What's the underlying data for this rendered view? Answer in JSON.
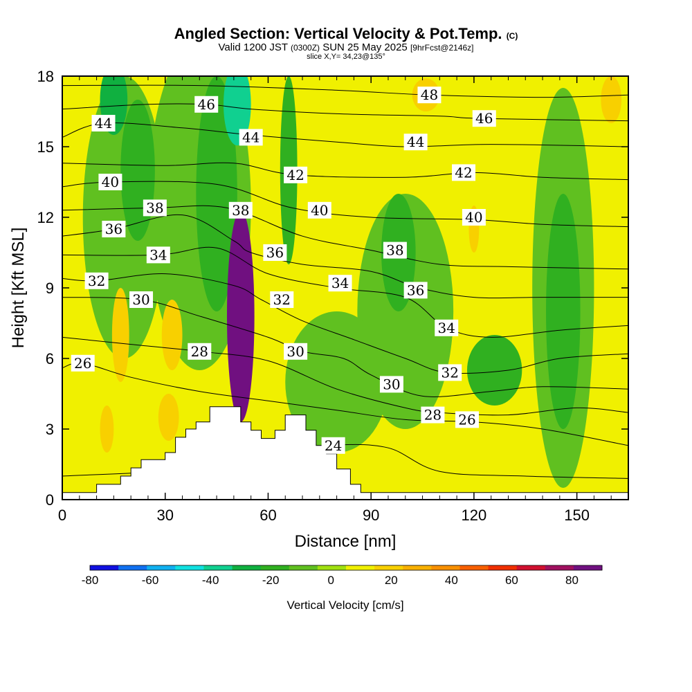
{
  "header": {
    "title": "Angled Section: Vertical Velocity & Pot.Temp.",
    "title_mark": "(C)",
    "valid_prefix": "Valid 1200 JST",
    "valid_zulu": "(0300Z)",
    "valid_date": "SUN 25 May 2025",
    "forecast_tag": "[9hrFcst@2146z]",
    "slice": "slice X,Y= 34,23@135°"
  },
  "chart_data": {
    "type": "heatmap",
    "xlabel": "Distance [nm]",
    "ylabel": "Height [Kft MSL]",
    "xlim": [
      0,
      165
    ],
    "ylim": [
      0,
      18
    ],
    "x_ticks": [
      {
        "value": 0,
        "label": "0"
      },
      {
        "value": 30,
        "label": "30"
      },
      {
        "value": 60,
        "label": "60"
      },
      {
        "value": 90,
        "label": "90"
      },
      {
        "value": 120,
        "label": "120"
      },
      {
        "value": 150,
        "label": "150"
      }
    ],
    "y_ticks": [
      {
        "value": 0,
        "label": "0"
      },
      {
        "value": 3,
        "label": "3"
      },
      {
        "value": 6,
        "label": "6"
      },
      {
        "value": 9,
        "label": "9"
      },
      {
        "value": 12,
        "label": "12"
      },
      {
        "value": 15,
        "label": "15"
      },
      {
        "value": 18,
        "label": "18"
      }
    ],
    "colorbar": {
      "label": "Vertical Velocity [cm/s]",
      "range": [
        -80,
        90
      ],
      "colors": [
        "#1010e0",
        "#1070f0",
        "#10b0f0",
        "#10e0e0",
        "#10d090",
        "#10b040",
        "#30b020",
        "#60c020",
        "#a0e010",
        "#f0f000",
        "#f8d000",
        "#f8b000",
        "#f89000",
        "#f86000",
        "#f03000",
        "#d01030",
        "#a01060",
        "#701080"
      ],
      "tick_labels": [
        {
          "value": -80,
          "label": "-80"
        },
        {
          "value": -60,
          "label": "-60"
        },
        {
          "value": -40,
          "label": "-40"
        },
        {
          "value": -20,
          "label": "-20"
        },
        {
          "value": 0,
          "label": "0"
        },
        {
          "value": 20,
          "label": "20"
        },
        {
          "value": 40,
          "label": "40"
        },
        {
          "value": 60,
          "label": "60"
        },
        {
          "value": 80,
          "label": "80"
        }
      ]
    },
    "terrain_kft": [
      {
        "x": 0,
        "z": 0.3
      },
      {
        "x": 10,
        "z": 0.3
      },
      {
        "x": 10,
        "z": 0.65
      },
      {
        "x": 17,
        "z": 0.65
      },
      {
        "x": 17,
        "z": 1.0
      },
      {
        "x": 20,
        "z": 1.0
      },
      {
        "x": 20,
        "z": 1.35
      },
      {
        "x": 23,
        "z": 1.35
      },
      {
        "x": 23,
        "z": 1.7
      },
      {
        "x": 30,
        "z": 1.7
      },
      {
        "x": 30,
        "z": 2.0
      },
      {
        "x": 33,
        "z": 2.0
      },
      {
        "x": 33,
        "z": 2.65
      },
      {
        "x": 36,
        "z": 2.65
      },
      {
        "x": 36,
        "z": 3.0
      },
      {
        "x": 39,
        "z": 3.0
      },
      {
        "x": 39,
        "z": 3.3
      },
      {
        "x": 43,
        "z": 3.3
      },
      {
        "x": 43,
        "z": 3.95
      },
      {
        "x": 52,
        "z": 3.95
      },
      {
        "x": 52,
        "z": 3.3
      },
      {
        "x": 55,
        "z": 3.3
      },
      {
        "x": 55,
        "z": 2.95
      },
      {
        "x": 58,
        "z": 2.95
      },
      {
        "x": 58,
        "z": 2.6
      },
      {
        "x": 62,
        "z": 2.6
      },
      {
        "x": 62,
        "z": 2.95
      },
      {
        "x": 65,
        "z": 2.95
      },
      {
        "x": 65,
        "z": 3.6
      },
      {
        "x": 71,
        "z": 3.6
      },
      {
        "x": 71,
        "z": 2.95
      },
      {
        "x": 74,
        "z": 2.95
      },
      {
        "x": 74,
        "z": 2.3
      },
      {
        "x": 77,
        "z": 2.3
      },
      {
        "x": 77,
        "z": 1.95
      },
      {
        "x": 80,
        "z": 1.95
      },
      {
        "x": 80,
        "z": 1.3
      },
      {
        "x": 84,
        "z": 1.3
      },
      {
        "x": 84,
        "z": 0.65
      },
      {
        "x": 87,
        "z": 0.65
      },
      {
        "x": 87,
        "z": 0.3
      },
      {
        "x": 165,
        "z": 0.3
      }
    ],
    "velocity_cells_cm_s": [
      {
        "x": 52,
        "z": 7.8,
        "w": 8,
        "h": 9,
        "value": 85
      },
      {
        "x": 52,
        "z": 8.0,
        "w": 6,
        "h": 6,
        "value": 70
      },
      {
        "x": 51,
        "z": 8.5,
        "w": 5,
        "h": 5,
        "value": 60
      },
      {
        "x": 51,
        "z": 8.8,
        "w": 4,
        "h": 4,
        "value": 50
      },
      {
        "x": 51,
        "z": 9.0,
        "w": 3,
        "h": 3,
        "value": 40
      },
      {
        "x": 51,
        "z": 9.3,
        "w": 2,
        "h": 2,
        "value": 30
      },
      {
        "x": 51,
        "z": 9.5,
        "w": 1.5,
        "h": 1.2,
        "value": 20
      },
      {
        "x": 17,
        "z": 7.0,
        "w": 5,
        "h": 4,
        "value": 20
      },
      {
        "x": 32,
        "z": 7.0,
        "w": 6,
        "h": 3,
        "value": 20
      },
      {
        "x": 31,
        "z": 3.5,
        "w": 6,
        "h": 2,
        "value": 20
      },
      {
        "x": 13,
        "z": 3.0,
        "w": 4,
        "h": 2,
        "value": 20
      },
      {
        "x": 106,
        "z": 17.2,
        "w": 8,
        "h": 1.4,
        "value": 20
      },
      {
        "x": 120,
        "z": 11.5,
        "w": 3,
        "h": 2,
        "value": 20
      },
      {
        "x": 160,
        "z": 17.0,
        "w": 6,
        "h": 2,
        "value": 20
      },
      {
        "x": 51,
        "z": 16.8,
        "w": 8,
        "h": 3.5,
        "value": -40
      },
      {
        "x": 15,
        "z": 17.0,
        "w": 8,
        "h": 3,
        "value": -30
      },
      {
        "x": 98,
        "z": 10.5,
        "w": 10,
        "h": 5,
        "value": -20
      },
      {
        "x": 146,
        "z": 8.0,
        "w": 10,
        "h": 10,
        "value": -20
      },
      {
        "x": 45,
        "z": 13.0,
        "w": 12,
        "h": 10,
        "value": -20
      },
      {
        "x": 22,
        "z": 14.0,
        "w": 10,
        "h": 6,
        "value": -20
      },
      {
        "x": 126,
        "z": 5.5,
        "w": 16,
        "h": 3,
        "value": -20
      },
      {
        "x": 66,
        "z": 14.0,
        "w": 5,
        "h": 8,
        "value": -20
      },
      {
        "x": 100,
        "z": 8.0,
        "w": 28,
        "h": 10,
        "value": -10
      },
      {
        "x": 146,
        "z": 9.0,
        "w": 18,
        "h": 17,
        "value": -10
      },
      {
        "x": 40,
        "z": 12.5,
        "w": 30,
        "h": 14,
        "value": -10
      },
      {
        "x": 80,
        "z": 5.0,
        "w": 30,
        "h": 6,
        "value": -10
      },
      {
        "x": 18,
        "z": 12.0,
        "w": 24,
        "h": 12,
        "value": -10
      }
    ],
    "theta_contours": [
      {
        "label": "24",
        "lx": 79,
        "lz": 2.3,
        "pts": [
          [
            0,
            1.0
          ],
          [
            40,
            1.3
          ],
          [
            70,
            1.9
          ],
          [
            79,
            2.3
          ],
          [
            95,
            2.2
          ],
          [
            110,
            1.2
          ],
          [
            135,
            1.0
          ],
          [
            165,
            0.9
          ]
        ]
      },
      {
        "label": "26",
        "lx": 6,
        "lz": 5.8,
        "pts": [
          [
            0,
            5.6
          ],
          [
            6,
            5.8
          ],
          [
            20,
            5.2
          ],
          [
            40,
            4.6
          ],
          [
            60,
            4.2
          ],
          [
            80,
            3.8
          ],
          [
            100,
            3.4
          ],
          [
            120,
            3.3
          ],
          [
            140,
            3.0
          ],
          [
            165,
            2.3
          ]
        ]
      },
      {
        "label": "28",
        "lx": 40,
        "lz": 6.3,
        "pts": [
          [
            0,
            6.9
          ],
          [
            20,
            6.6
          ],
          [
            40,
            6.3
          ],
          [
            60,
            5.9
          ],
          [
            80,
            4.7
          ],
          [
            100,
            3.9
          ],
          [
            110,
            3.7
          ],
          [
            130,
            3.6
          ],
          [
            150,
            3.9
          ],
          [
            165,
            3.7
          ]
        ]
      },
      {
        "label": "30",
        "lx": 23,
        "lz": 8.5,
        "pts": [
          [
            0,
            8.6
          ],
          [
            23,
            8.5
          ],
          [
            40,
            7.8
          ],
          [
            60,
            6.9
          ],
          [
            70,
            6.3
          ],
          [
            82,
            6.0
          ],
          [
            90,
            5.3
          ],
          [
            105,
            4.4
          ],
          [
            125,
            4.6
          ],
          [
            140,
            4.8
          ],
          [
            165,
            4.7
          ]
        ]
      },
      {
        "label": "32",
        "lx": 10,
        "lz": 9.3,
        "pts": [
          [
            0,
            9.4
          ],
          [
            10,
            9.3
          ],
          [
            30,
            9.6
          ],
          [
            50,
            9.1
          ],
          [
            58,
            8.5
          ],
          [
            70,
            7.6
          ],
          [
            85,
            6.8
          ],
          [
            100,
            6.0
          ],
          [
            112,
            5.4
          ],
          [
            130,
            5.5
          ],
          [
            145,
            6.0
          ],
          [
            165,
            6.2
          ]
        ]
      },
      {
        "label": "34",
        "lx": 28,
        "lz": 10.4,
        "pts": [
          [
            0,
            10.4
          ],
          [
            28,
            10.4
          ],
          [
            45,
            10.7
          ],
          [
            60,
            9.6
          ],
          [
            80,
            9.0
          ],
          [
            100,
            8.6
          ],
          [
            112,
            7.3
          ],
          [
            125,
            6.9
          ],
          [
            145,
            7.2
          ],
          [
            165,
            7.4
          ]
        ]
      },
      {
        "label": "36",
        "lx": 15,
        "lz": 11.5,
        "pts": [
          [
            0,
            11.2
          ],
          [
            15,
            11.5
          ],
          [
            35,
            12.1
          ],
          [
            50,
            11.0
          ],
          [
            55,
            10.5
          ],
          [
            70,
            10.0
          ],
          [
            90,
            9.7
          ],
          [
            104,
            9.0
          ],
          [
            120,
            8.6
          ],
          [
            140,
            8.6
          ],
          [
            165,
            8.6
          ]
        ]
      },
      {
        "label": "38",
        "lx": 27,
        "lz": 12.4,
        "pts": [
          [
            0,
            12.3
          ],
          [
            27,
            12.4
          ],
          [
            48,
            12.4
          ],
          [
            70,
            11.2
          ],
          [
            90,
            10.6
          ],
          [
            110,
            10.0
          ],
          [
            130,
            9.9
          ],
          [
            165,
            9.8
          ]
        ]
      },
      {
        "label": "40",
        "lx": 14,
        "lz": 13.5,
        "pts": [
          [
            0,
            13.3
          ],
          [
            14,
            13.5
          ],
          [
            45,
            13.4
          ],
          [
            67,
            12.4
          ],
          [
            90,
            12.0
          ],
          [
            120,
            11.9
          ],
          [
            140,
            11.7
          ],
          [
            165,
            11.6
          ]
        ]
      },
      {
        "label": "42",
        "lx": 68,
        "lz": 13.8,
        "pts": [
          [
            0,
            14.3
          ],
          [
            30,
            14.2
          ],
          [
            50,
            14.3
          ],
          [
            68,
            13.8
          ],
          [
            100,
            13.7
          ],
          [
            120,
            13.9
          ],
          [
            140,
            13.7
          ],
          [
            165,
            13.6
          ]
        ]
      },
      {
        "label": "44",
        "lx": 12,
        "lz": 16.0,
        "pts": [
          [
            0,
            15.4
          ],
          [
            12,
            16.0
          ],
          [
            35,
            15.8
          ],
          [
            55,
            15.5
          ],
          [
            80,
            15.2
          ],
          [
            100,
            15.0
          ],
          [
            125,
            15.1
          ],
          [
            165,
            15.0
          ]
        ]
      },
      {
        "label": "46",
        "lx": 42,
        "lz": 16.8,
        "pts": [
          [
            0,
            16.6
          ],
          [
            25,
            16.8
          ],
          [
            42,
            16.8
          ],
          [
            55,
            16.6
          ],
          [
            80,
            16.4
          ],
          [
            110,
            16.3
          ],
          [
            122,
            16.2
          ],
          [
            165,
            16.1
          ]
        ]
      },
      {
        "label": "48",
        "lx": 107,
        "lz": 17.2,
        "pts": [
          [
            0,
            17.6
          ],
          [
            40,
            17.6
          ],
          [
            80,
            17.4
          ],
          [
            107,
            17.2
          ],
          [
            140,
            17.1
          ],
          [
            165,
            17.2
          ]
        ]
      }
    ],
    "extra_labels": [
      {
        "label": "44",
        "x": 55,
        "z": 15.4
      },
      {
        "label": "38",
        "x": 52,
        "z": 12.3
      },
      {
        "label": "40",
        "x": 75,
        "z": 12.3
      },
      {
        "label": "36",
        "x": 62,
        "z": 10.5
      },
      {
        "label": "32",
        "x": 64,
        "z": 8.5
      },
      {
        "label": "30",
        "x": 68,
        "z": 6.3
      },
      {
        "label": "34",
        "x": 81,
        "z": 9.2
      },
      {
        "label": "38",
        "x": 97,
        "z": 10.6
      },
      {
        "label": "36",
        "x": 103,
        "z": 8.9
      },
      {
        "label": "34",
        "x": 112,
        "z": 7.3
      },
      {
        "label": "32",
        "x": 113,
        "z": 5.4
      },
      {
        "label": "30",
        "x": 96,
        "z": 4.9
      },
      {
        "label": "28",
        "x": 108,
        "z": 3.6
      },
      {
        "label": "26",
        "x": 118,
        "z": 3.4
      },
      {
        "label": "40",
        "x": 120,
        "z": 12.0
      },
      {
        "label": "42",
        "x": 117,
        "z": 13.9
      },
      {
        "label": "44",
        "x": 103,
        "z": 15.2
      },
      {
        "label": "46",
        "x": 123,
        "z": 16.2
      }
    ]
  }
}
